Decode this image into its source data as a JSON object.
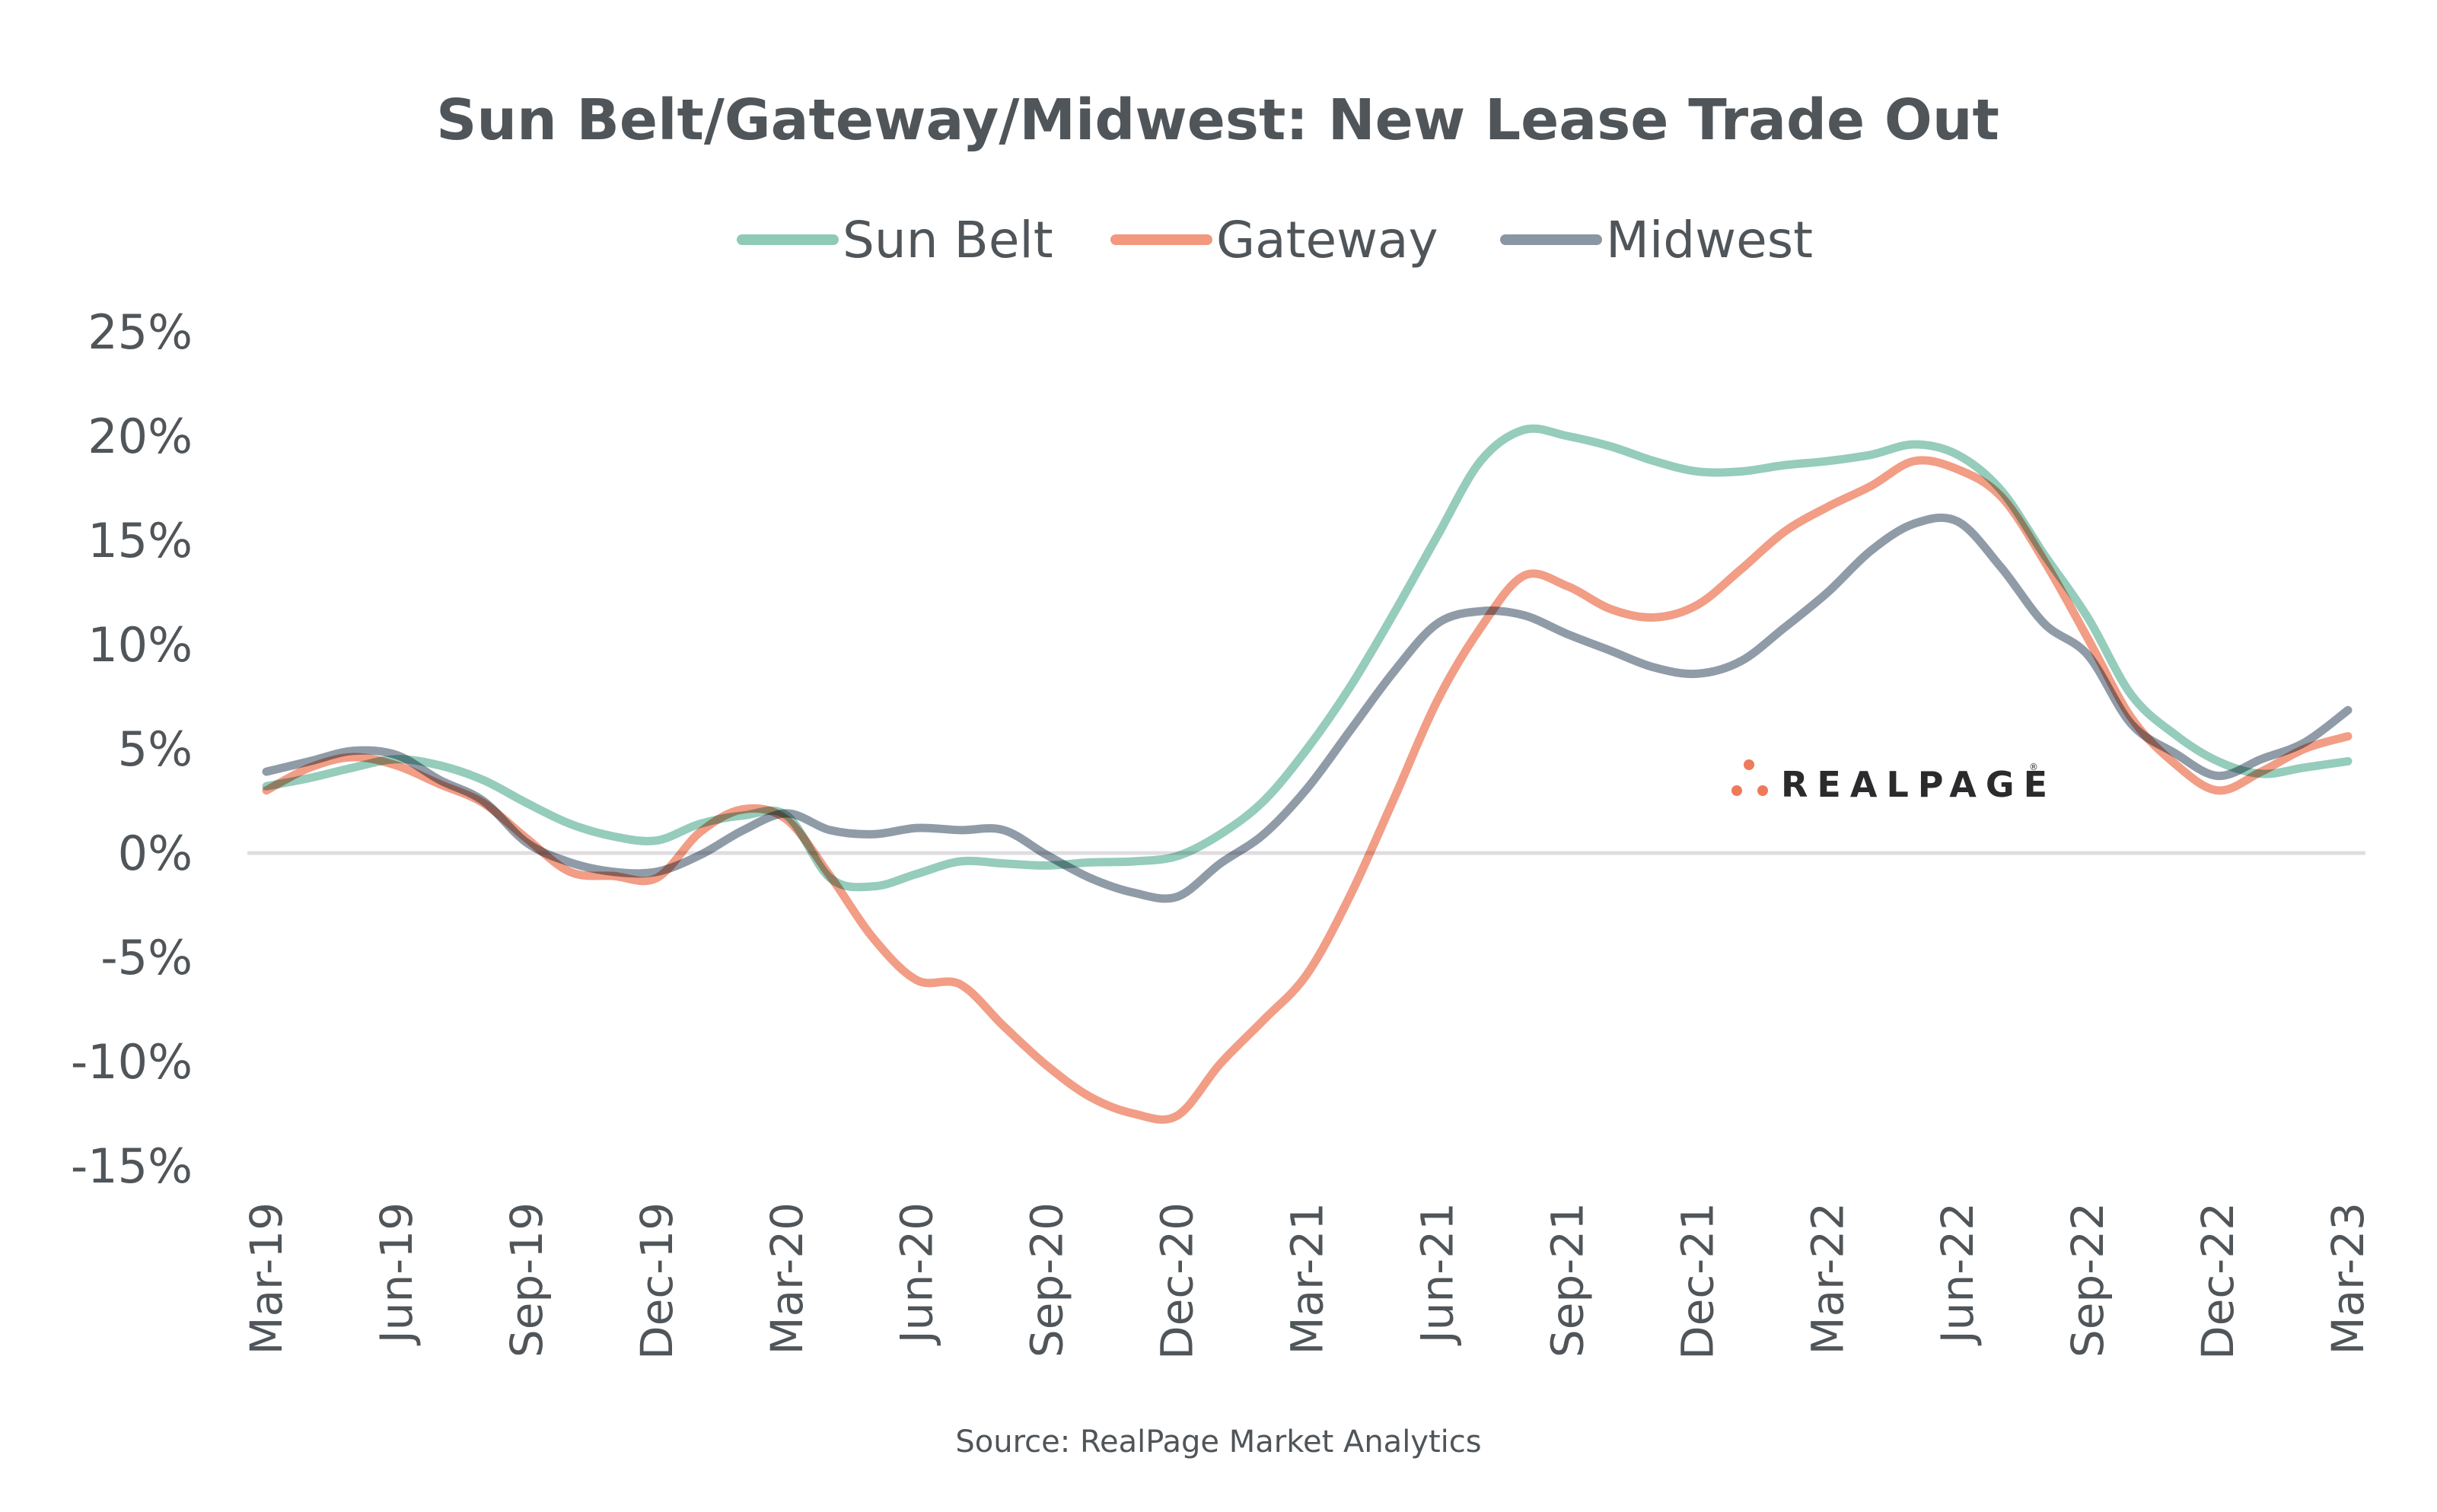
{
  "chart_data": {
    "type": "line",
    "title": "Sun Belt/Gateway/Midwest: New Lease Trade Out",
    "xlabel": "",
    "ylabel": "",
    "source": "Source: RealPage Market Analytics",
    "logo": {
      "text": "REALPAGE",
      "registered_mark": "®"
    },
    "ylim": [
      -15,
      25
    ],
    "y_ticks": [
      25,
      20,
      15,
      10,
      5,
      0,
      -5,
      -10,
      -15
    ],
    "y_tick_labels": [
      "25%",
      "20%",
      "15%",
      "10%",
      "5%",
      "0%",
      "-5%",
      "-10%",
      "-15%"
    ],
    "x_tick_labels": [
      "Mar-19",
      "Jun-19",
      "Sep-19",
      "Dec-19",
      "Mar-20",
      "Jun-20",
      "Sep-20",
      "Dec-20",
      "Mar-21",
      "Jun-21",
      "Sep-21",
      "Dec-21",
      "Mar-22",
      "Jun-22",
      "Sep-22",
      "Dec-22",
      "Mar-23"
    ],
    "x_tick_interval_months": 3,
    "x_start": "Mar-19",
    "x_end": "Mar-23",
    "x_frequency": "monthly",
    "grid": "zero-line only",
    "legend_position": "top-center",
    "series": [
      {
        "name": "Sun Belt",
        "color": "#8fcab8",
        "values": [
          3.2,
          3.6,
          4.1,
          4.5,
          4.2,
          3.5,
          2.4,
          1.4,
          0.8,
          0.6,
          1.4,
          1.8,
          1.8,
          -1.2,
          -1.6,
          -1.0,
          -0.4,
          -0.5,
          -0.6,
          -0.45,
          -0.4,
          -0.15,
          0.9,
          2.5,
          5.0,
          8.0,
          11.5,
          15.2,
          18.8,
          20.3,
          20.0,
          19.5,
          18.8,
          18.3,
          18.3,
          18.6,
          18.8,
          19.1,
          19.6,
          19.1,
          17.4,
          14.3,
          11.3,
          7.6,
          5.7,
          4.4,
          3.8,
          4.1,
          4.4
        ]
      },
      {
        "name": "Gateway",
        "color": "#f2987e",
        "values": [
          3.0,
          4.1,
          4.6,
          4.2,
          3.3,
          2.4,
          0.7,
          -0.9,
          -1.1,
          -1.2,
          1.0,
          2.1,
          1.6,
          -1.1,
          -4.1,
          -6.1,
          -6.3,
          -8.3,
          -10.2,
          -11.7,
          -12.5,
          -12.6,
          -10.1,
          -8.0,
          -5.8,
          -2.0,
          2.6,
          7.3,
          10.8,
          13.3,
          12.8,
          11.7,
          11.3,
          11.9,
          13.6,
          15.4,
          16.6,
          17.6,
          18.8,
          18.4,
          17.1,
          14.0,
          10.3,
          6.5,
          4.3,
          3.0,
          3.9,
          5.0,
          5.6
        ]
      },
      {
        "name": "Midwest",
        "color": "#8a96a3",
        "values": [
          3.9,
          4.4,
          4.9,
          4.7,
          3.5,
          2.5,
          0.5,
          -0.45,
          -0.9,
          -0.9,
          -0.1,
          1.1,
          1.9,
          1.1,
          0.9,
          1.2,
          1.1,
          1.1,
          -0.1,
          -1.2,
          -1.9,
          -2.1,
          -0.5,
          0.9,
          3.1,
          5.9,
          8.7,
          11.0,
          11.6,
          11.4,
          10.5,
          9.7,
          8.9,
          8.6,
          9.2,
          10.8,
          12.5,
          14.5,
          15.8,
          15.9,
          13.7,
          11.0,
          9.5,
          6.2,
          4.8,
          3.7,
          4.5,
          5.3,
          6.85
        ]
      }
    ],
    "colors": {
      "text": "#4f5559",
      "zero_line": "#e0dde0",
      "logo_dots": "#ef7a59",
      "logo_text": "#2b2b2d"
    }
  }
}
